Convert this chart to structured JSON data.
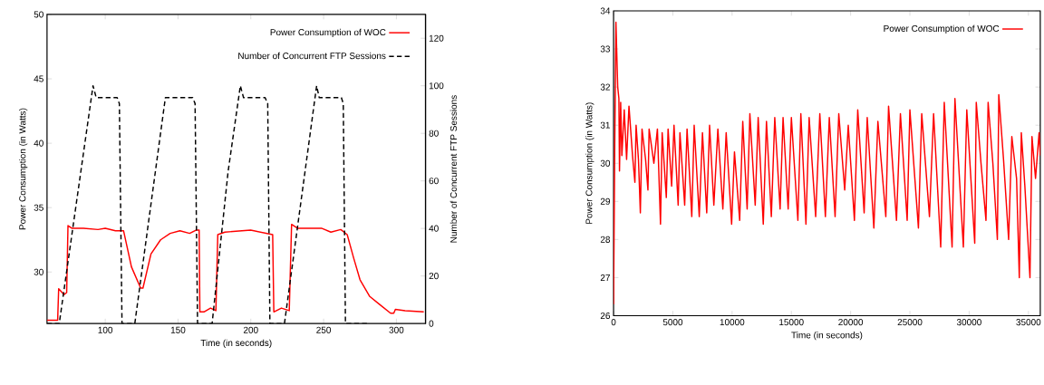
{
  "chart_data": [
    {
      "type": "line",
      "xlabel": "Time (in seconds)",
      "ylabel": "Power Consumption (in Watts)",
      "y2label": "Number of Concurrent FTP Sessions",
      "legend": "top right",
      "xlim": [
        60,
        320
      ],
      "ylim": [
        26,
        50
      ],
      "y2lim": [
        0,
        130
      ],
      "xticks": [
        100,
        150,
        200,
        250,
        300
      ],
      "yticks": [
        30,
        35,
        40,
        45,
        50
      ],
      "y2ticks": [
        0,
        20,
        40,
        60,
        80,
        100,
        120
      ],
      "series": [
        {
          "name": "Power Consumption of WOC",
          "color": "#ff0000",
          "line_style": "solid",
          "x": [
            60,
            67.3,
            68,
            71.7,
            73.5,
            74.4,
            77,
            85,
            95,
            100,
            107,
            112.6,
            118,
            124.3,
            125.9,
            131.4,
            138,
            144.6,
            151.3,
            158,
            162.3,
            164.5,
            165,
            167.8,
            172.3,
            176,
            177.3,
            182.2,
            199.9,
            215,
            215.8,
            221,
            226.4,
            228,
            232,
            248.5,
            255,
            261.8,
            266.2,
            270.6,
            275,
            281.7,
            288.3,
            296,
            298.2,
            299.3,
            306,
            318.8
          ],
          "values": [
            26.25,
            26.25,
            28.7,
            28.25,
            28.4,
            33.6,
            33.4,
            33.4,
            33.3,
            33.4,
            33.2,
            33.2,
            30.4,
            28.75,
            28.75,
            31.4,
            32.5,
            33.0,
            33.2,
            33.0,
            33.25,
            33.25,
            26.9,
            26.9,
            27.2,
            27.0,
            32.9,
            33.1,
            33.25,
            32.9,
            26.9,
            27.2,
            27.0,
            33.7,
            33.4,
            33.4,
            33.1,
            33.3,
            32.9,
            31.1,
            29.4,
            28.1,
            27.5,
            26.8,
            26.8,
            27.1,
            27.0,
            26.9
          ]
        },
        {
          "name": "Number of Concurrent FTP Sessions",
          "color": "#000000",
          "line_style": "dashed",
          "axis": "y2",
          "x": [
            60,
            68.4,
            91.6,
            93.8,
            108.2,
            109.7,
            111.5,
            120.3,
            141.3,
            160.1,
            161.7,
            163.4,
            173.4,
            184.4,
            192.8,
            195,
            209.8,
            211.6,
            213.1,
            223.1,
            245.2,
            247,
            262.2,
            263.5,
            265,
            281.7
          ],
          "values": [
            0,
            0,
            100,
            95,
            95,
            92.5,
            0,
            0,
            95,
            95,
            92.5,
            0,
            0,
            64,
            100,
            95,
            95,
            92.5,
            0,
            0,
            100,
            95,
            95,
            92.5,
            0,
            0
          ]
        }
      ]
    },
    {
      "type": "line",
      "xlabel": "Time (in seconds)",
      "ylabel": "Power Consumption (in Watts)",
      "legend": "top right",
      "xlim": [
        0,
        36000
      ],
      "ylim": [
        26,
        34
      ],
      "xticks": [
        0,
        5000,
        10000,
        15000,
        20000,
        25000,
        30000,
        35000
      ],
      "yticks": [
        26,
        27,
        28,
        29,
        30,
        31,
        32,
        33,
        34
      ],
      "series": [
        {
          "name": "Power Consumption of WOC",
          "color": "#ff0000",
          "line_style": "solid",
          "x": [
            0,
            100,
            200,
            350,
            450,
            500,
            600,
            700,
            900,
            1100,
            1300,
            1600,
            1800,
            1900,
            2100,
            2260,
            2400,
            2700,
            2900,
            3000,
            3400,
            3700,
            3960,
            4100,
            4450,
            4600,
            4900,
            5100,
            5450,
            5600,
            6000,
            6200,
            6600,
            6800,
            7230,
            7500,
            7860,
            8100,
            8460,
            8800,
            9220,
            9500,
            9960,
            10200,
            10640,
            10900,
            11270,
            11500,
            11950,
            12200,
            12630,
            12900,
            13310,
            13600,
            14050,
            14300,
            14730,
            15000,
            15550,
            15800,
            16230,
            16500,
            17050,
            17400,
            17870,
            18200,
            18690,
            19000,
            19500,
            19800,
            20320,
            20600,
            21140,
            21400,
            21960,
            22300,
            22970,
            23200,
            23870,
            24200,
            24770,
            25000,
            25720,
            26000,
            26650,
            27000,
            27600,
            27900,
            28560,
            28800,
            29510,
            29800,
            30470,
            30600,
            31000,
            31420,
            31600,
            32000,
            32380,
            32500,
            32900,
            33330,
            33600,
            34000,
            34230,
            34400,
            34700,
            35130,
            35300,
            35600,
            35900,
            36000
          ],
          "values": [
            26.3,
            30.5,
            33.7,
            32.0,
            31.7,
            29.8,
            31.6,
            30.2,
            31.4,
            30.1,
            31.5,
            30.2,
            29.5,
            31.0,
            30.1,
            28.7,
            30.9,
            30.1,
            29.3,
            30.9,
            30.0,
            30.9,
            28.4,
            30.8,
            29.1,
            30.9,
            29.4,
            31.0,
            28.9,
            30.8,
            28.9,
            30.9,
            28.6,
            31.0,
            28.6,
            30.8,
            28.7,
            31.0,
            28.9,
            30.9,
            28.8,
            30.8,
            28.4,
            30.3,
            28.5,
            31.1,
            28.8,
            31.3,
            28.9,
            31.2,
            28.4,
            31.1,
            28.6,
            31.2,
            28.8,
            31.2,
            28.8,
            31.2,
            28.5,
            31.3,
            28.4,
            31.2,
            28.6,
            31.3,
            28.6,
            31.2,
            28.6,
            31.3,
            29.3,
            31.0,
            28.5,
            31.4,
            28.7,
            31.2,
            28.3,
            31.1,
            28.6,
            31.5,
            28.5,
            31.3,
            28.5,
            31.4,
            28.3,
            31.3,
            28.6,
            31.3,
            27.8,
            31.6,
            27.8,
            31.7,
            27.8,
            31.4,
            27.9,
            31.6,
            30.0,
            28.5,
            31.6,
            30.0,
            28.0,
            31.8,
            30.1,
            28.0,
            30.7,
            29.6,
            27.0,
            30.8,
            29.4,
            27.0,
            30.7,
            29.6,
            30.8,
            30.2
          ]
        }
      ]
    }
  ]
}
